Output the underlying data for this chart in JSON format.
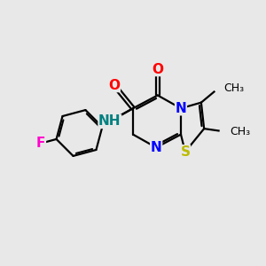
{
  "background_color": "#e8e8e8",
  "bond_color": "#000000",
  "bond_width": 1.6,
  "atoms": {
    "F": {
      "color": "#ff00cc",
      "fontsize": 11
    },
    "O": {
      "color": "#ff0000",
      "fontsize": 11
    },
    "N": {
      "color": "#0000ff",
      "fontsize": 11
    },
    "NH": {
      "color": "#008080",
      "fontsize": 11
    },
    "S": {
      "color": "#bbbb00",
      "fontsize": 11
    }
  },
  "methyl_fontsize": 9,
  "methyl_color": "#000000"
}
